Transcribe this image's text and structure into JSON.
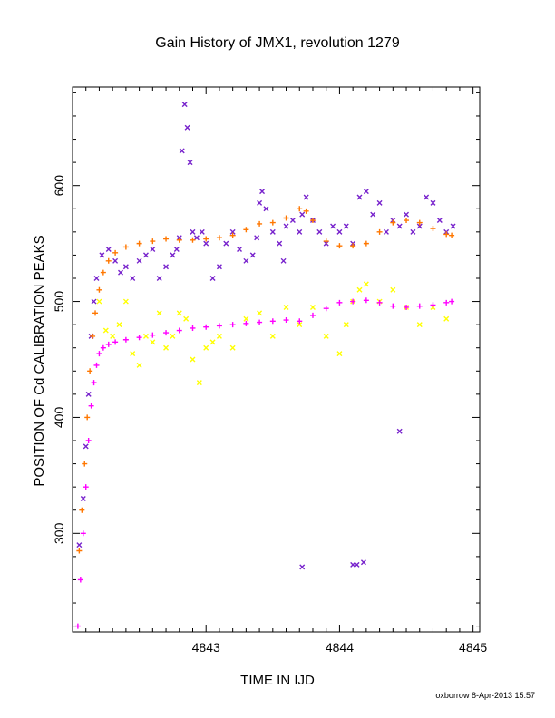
{
  "chart_data": {
    "type": "scatter",
    "title": "Gain History of JMX1, revolution 1279",
    "xlabel": "TIME IN IJD",
    "ylabel": "POSITION OF Cd CALIBRATION PEAKS",
    "xlim": [
      4842.0,
      4845.05
    ],
    "ylim": [
      215,
      685
    ],
    "xticks": [
      4843,
      4844,
      4845
    ],
    "yticks": [
      300,
      400,
      500,
      600
    ],
    "grid": false,
    "footer": "oxborrow  8-Apr-2013 15:57",
    "colors": {
      "purple": "#7722cc",
      "orange": "#ff7700",
      "yellow": "#ffff00",
      "magenta": "#ff00ff",
      "axis": "#000000"
    },
    "series": [
      {
        "marker": "x",
        "color": "#7722cc",
        "x": [
          4842.05,
          4842.08,
          4842.1,
          4842.12,
          4842.14,
          4842.16,
          4842.18,
          4842.22,
          4842.27,
          4842.32,
          4842.36,
          4842.4,
          4842.45,
          4842.5,
          4842.55,
          4842.6,
          4842.65,
          4842.7,
          4842.75,
          4842.78,
          4842.8,
          4842.82,
          4842.84,
          4842.86,
          4842.88,
          4842.9,
          4842.93,
          4842.97,
          4843.0,
          4843.05,
          4843.1,
          4843.15,
          4843.2,
          4843.25,
          4843.3,
          4843.35,
          4843.38,
          4843.4,
          4843.42,
          4843.45,
          4843.5,
          4843.55,
          4843.58,
          4843.6,
          4843.65,
          4843.7,
          4843.72,
          4843.75,
          4843.8,
          4843.85,
          4843.9,
          4843.95,
          4844.0,
          4844.05,
          4844.1,
          4844.15,
          4844.2,
          4844.25,
          4844.3,
          4844.35,
          4844.4,
          4844.45,
          4844.5,
          4844.55,
          4844.6,
          4844.65,
          4844.7,
          4844.75,
          4844.8,
          4844.85,
          4843.72,
          4844.1,
          4844.13,
          4844.18,
          4844.45
        ],
        "y": [
          290,
          330,
          375,
          420,
          470,
          500,
          520,
          540,
          545,
          535,
          525,
          530,
          520,
          535,
          540,
          545,
          520,
          530,
          540,
          545,
          555,
          630,
          670,
          650,
          620,
          560,
          555,
          560,
          550,
          520,
          530,
          550,
          560,
          545,
          535,
          540,
          555,
          585,
          595,
          580,
          560,
          550,
          535,
          565,
          570,
          560,
          575,
          590,
          570,
          560,
          550,
          565,
          560,
          565,
          550,
          590,
          595,
          575,
          585,
          560,
          570,
          565,
          575,
          560,
          565,
          590,
          585,
          570,
          560,
          565,
          271,
          273,
          273,
          275,
          388
        ]
      },
      {
        "marker": "+",
        "color": "#ff7700",
        "x": [
          4842.05,
          4842.07,
          4842.09,
          4842.11,
          4842.13,
          4842.15,
          4842.17,
          4842.2,
          4842.23,
          4842.27,
          4842.32,
          4842.4,
          4842.5,
          4842.6,
          4842.7,
          4842.8,
          4842.9,
          4843.0,
          4843.1,
          4843.2,
          4843.3,
          4843.4,
          4843.5,
          4843.6,
          4843.7,
          4843.75,
          4843.8,
          4843.9,
          4844.0,
          4844.1,
          4844.2,
          4844.3,
          4844.4,
          4844.5,
          4844.6,
          4844.7,
          4844.8,
          4844.84
        ],
        "y": [
          285,
          320,
          360,
          400,
          440,
          470,
          490,
          510,
          525,
          535,
          542,
          547,
          550,
          552,
          554,
          553,
          553,
          554,
          555,
          557,
          562,
          567,
          568,
          572,
          580,
          578,
          570,
          552,
          548,
          548,
          550,
          560,
          568,
          570,
          568,
          563,
          558,
          557
        ]
      },
      {
        "marker": "x",
        "color": "#ffff00",
        "x": [
          4842.2,
          4842.25,
          4842.3,
          4842.35,
          4842.4,
          4842.45,
          4842.5,
          4842.55,
          4842.6,
          4842.65,
          4842.7,
          4842.75,
          4842.8,
          4842.85,
          4842.9,
          4842.95,
          4843.0,
          4843.05,
          4843.1,
          4843.2,
          4843.3,
          4843.4,
          4843.5,
          4843.6,
          4843.7,
          4843.8,
          4843.9,
          4844.0,
          4844.05,
          4844.1,
          4844.15,
          4844.2,
          4844.3,
          4844.4,
          4844.5,
          4844.6,
          4844.7,
          4844.8
        ],
        "y": [
          500,
          475,
          470,
          480,
          500,
          455,
          445,
          470,
          465,
          490,
          460,
          470,
          490,
          485,
          450,
          430,
          460,
          465,
          470,
          460,
          485,
          490,
          470,
          495,
          480,
          495,
          470,
          455,
          480,
          500,
          510,
          515,
          500,
          510,
          495,
          480,
          495,
          485
        ]
      },
      {
        "marker": "+",
        "color": "#ff00ff",
        "x": [
          4842.04,
          4842.06,
          4842.08,
          4842.1,
          4842.12,
          4842.14,
          4842.16,
          4842.18,
          4842.2,
          4842.23,
          4842.27,
          4842.32,
          4842.4,
          4842.5,
          4842.6,
          4842.7,
          4842.8,
          4842.9,
          4843.0,
          4843.1,
          4843.2,
          4843.3,
          4843.4,
          4843.5,
          4843.6,
          4843.7,
          4843.8,
          4843.9,
          4844.0,
          4844.1,
          4844.2,
          4844.3,
          4844.4,
          4844.5,
          4844.6,
          4844.7,
          4844.8,
          4844.84
        ],
        "y": [
          220,
          260,
          300,
          340,
          380,
          410,
          430,
          445,
          455,
          460,
          463,
          465,
          467,
          469,
          471,
          473,
          475,
          477,
          478,
          479,
          480,
          481,
          482,
          483,
          484,
          483,
          488,
          494,
          499,
          500,
          501,
          499,
          496,
          495,
          496,
          497,
          499,
          500
        ]
      }
    ]
  }
}
